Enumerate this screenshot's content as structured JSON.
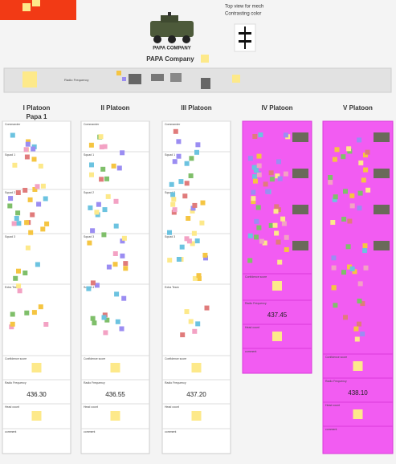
{
  "header": {
    "mech_note": "Top view for mech",
    "color_note": "Contrasting color",
    "vehicle_label": "PAPA COMPANY",
    "company": "PAPA Company",
    "radio": "Radio Frequency"
  },
  "platoons": [
    {
      "name": "I Platoon",
      "subtitle": "Papa 1",
      "frequency": "436.30",
      "sections": [
        "Commander",
        "Squad 1",
        "Squad 2",
        "Squad 3",
        "Extra Team",
        "Confidence score",
        "Radio Frequency",
        "Head count",
        "comment"
      ]
    },
    {
      "name": "II Platoon",
      "frequency": "436.55",
      "sections": [
        "Commander",
        "Squad 1",
        "Squad 2",
        "Squad 3",
        "Squad 4",
        "Confidence score",
        "Radio Frequency",
        "Head count",
        "comment"
      ]
    },
    {
      "name": "III Platoon",
      "frequency": "437.20",
      "sections": [
        "Commander",
        "Squad 1",
        "Squad 2",
        "Squad 3",
        "Extra Team",
        "Confidence score",
        "Radio Frequency",
        "Head count",
        "comment"
      ]
    },
    {
      "name": "IV Platoon",
      "frequency": "437.45",
      "sections": [
        "Confidence score",
        "Radio Frequency",
        "Head count",
        "comment"
      ]
    },
    {
      "name": "V Platoon",
      "frequency": "438.10",
      "sections": [
        "Confidence score",
        "Radio Frequency",
        "Head count",
        "comment"
      ]
    }
  ]
}
